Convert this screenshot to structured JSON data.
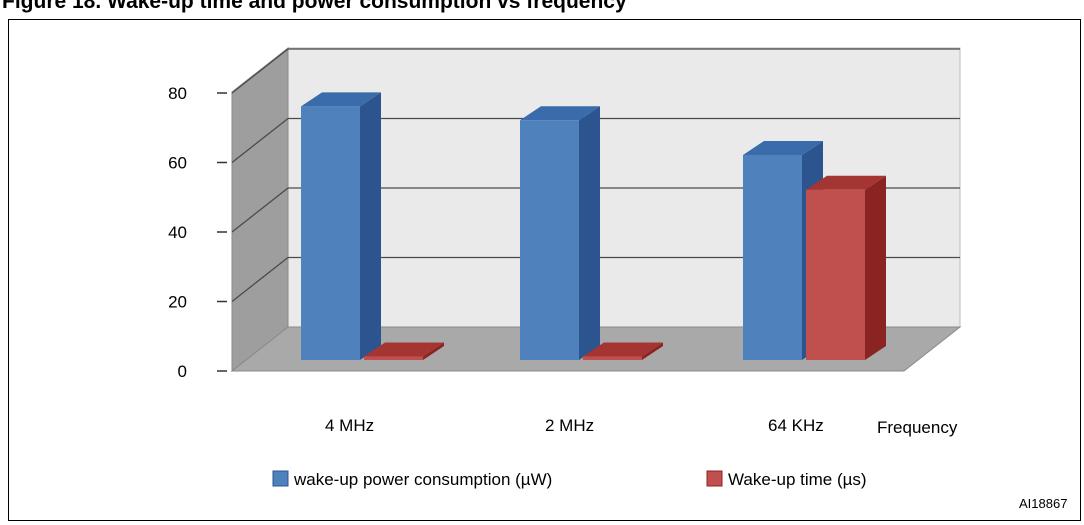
{
  "figure": {
    "caption": "Figure 18. Wake-up time and power consumption vs frequency",
    "id_label": "AI18867"
  },
  "colors": {
    "series1_front": "#4f81bd",
    "series1_side": "#2c5590",
    "series1_top": "#3a6bab",
    "series2_front": "#c0504d",
    "series2_side": "#8a2422",
    "series2_top": "#a53532",
    "back_wall": "#eaeaea",
    "side_wall": "#9e9e9e",
    "floor": "#a9a9a9"
  },
  "chart_data": {
    "type": "bar",
    "categories": [
      "4 MHz",
      "2 MHz",
      "64 KHz"
    ],
    "series": [
      {
        "name": "wake-up power consumption (µW)",
        "values": [
          73,
          69,
          59
        ]
      },
      {
        "name": "Wake-up time (µs)",
        "values": [
          1,
          1,
          49
        ]
      }
    ],
    "xlabel": "Frequency",
    "ylabel": "",
    "ylim": [
      0,
      80
    ],
    "yticks": [
      0,
      20,
      40,
      60,
      80
    ],
    "grid": true,
    "legend_position": "bottom",
    "three_d": true
  }
}
